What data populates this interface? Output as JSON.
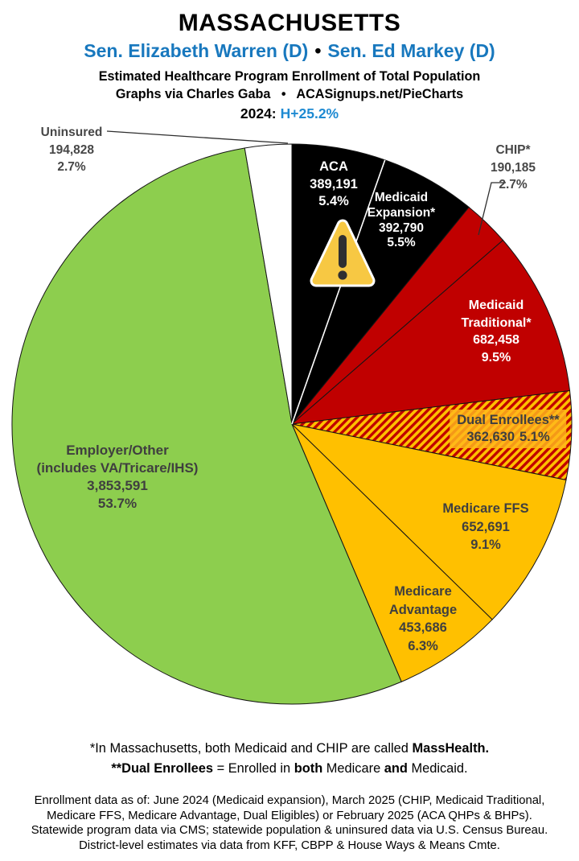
{
  "header": {
    "state": "MASSACHUSETTS",
    "senator1": "Sen. Elizabeth Warren (D)",
    "bullet": "•",
    "senator2": "Sen. Ed Markey (D)",
    "subtitle1": "Estimated Healthcare Program Enrollment of Total Population",
    "subtitle2": "Graphs via Charles Gaba   •   ACASignups.net/PieCharts",
    "year_label": "2024:",
    "trend": "H+25.2%"
  },
  "icons": {
    "warning": "⚠"
  },
  "colors": {
    "senator_blue": "#1878be",
    "trend_blue": "#1e8ad2",
    "slice_black": "#000000",
    "slice_red": "#c00000",
    "slice_yellow": "#ffc000",
    "slice_green": "#8dce4e",
    "slice_white": "#ffffff",
    "hatch_bg": "#ffc000",
    "hatch_stripe": "#c00000",
    "label_dark": "#3f3f3f",
    "label_gray": "#474747"
  },
  "chart_data": {
    "type": "pie",
    "title": "Estimated Healthcare Program Enrollment of Total Population",
    "subtitle": "Massachusetts, 2024",
    "legend_position": "none",
    "start_angle_deg": -90,
    "direction": "clockwise",
    "slices": [
      {
        "name": "ACA",
        "value": "389,191",
        "pct": "5.4%",
        "percent": 5.4,
        "color": "#000000"
      },
      {
        "name": "Medicaid Expansion*",
        "value": "392,790",
        "pct": "5.5%",
        "percent": 5.5,
        "color": "#000000"
      },
      {
        "name": "CHIP*",
        "value": "190,185",
        "pct": "2.7%",
        "percent": 2.7,
        "color": "#c00000"
      },
      {
        "name": "Medicaid Traditional*",
        "value": "682,458",
        "pct": "9.5%",
        "percent": 9.5,
        "color": "#c00000"
      },
      {
        "name": "Dual Enrollees**",
        "value": "362,630",
        "pct": "5.1%",
        "percent": 5.1,
        "color": "hatch"
      },
      {
        "name": "Medicare FFS",
        "value": "652,691",
        "pct": "9.1%",
        "percent": 9.1,
        "color": "#ffc000"
      },
      {
        "name": "Medicare Advantage",
        "value": "453,686",
        "pct": "6.3%",
        "percent": 6.3,
        "color": "#ffc000"
      },
      {
        "name": "Employer/Other",
        "sub": "(includes VA/Tricare/IHS)",
        "value": "3,853,591",
        "pct": "53.7%",
        "percent": 53.7,
        "color": "#8dce4e"
      },
      {
        "name": "Uninsured",
        "value": "194,828",
        "pct": "2.7%",
        "percent": 2.7,
        "color": "#ffffff"
      }
    ]
  },
  "notes": {
    "note1_pre": "*In Massachusetts, both Medicaid and CHIP are called ",
    "note1_bold": "MassHealth.",
    "note2_bold1": "**Dual Enrollees",
    "note2_mid1": " = Enrolled in ",
    "note2_bold2": "both",
    "note2_mid2": " Medicare ",
    "note2_bold3": "and",
    "note2_end": " Medicaid.",
    "datalines": [
      "Enrollment data as of: June 2024 (Medicaid expansion), March 2025 (CHIP, Medicaid Traditional,",
      "Medicare FFS, Medicare Advantage, Dual Eligibles) or February 2025 (ACA QHPs & BHPs).",
      "Statewide program data via CMS; statewide population & uninsured data via U.S. Census Bureau.",
      "District-level estimates via data from KFF, CBPP & House Ways & Means Cmte."
    ]
  }
}
